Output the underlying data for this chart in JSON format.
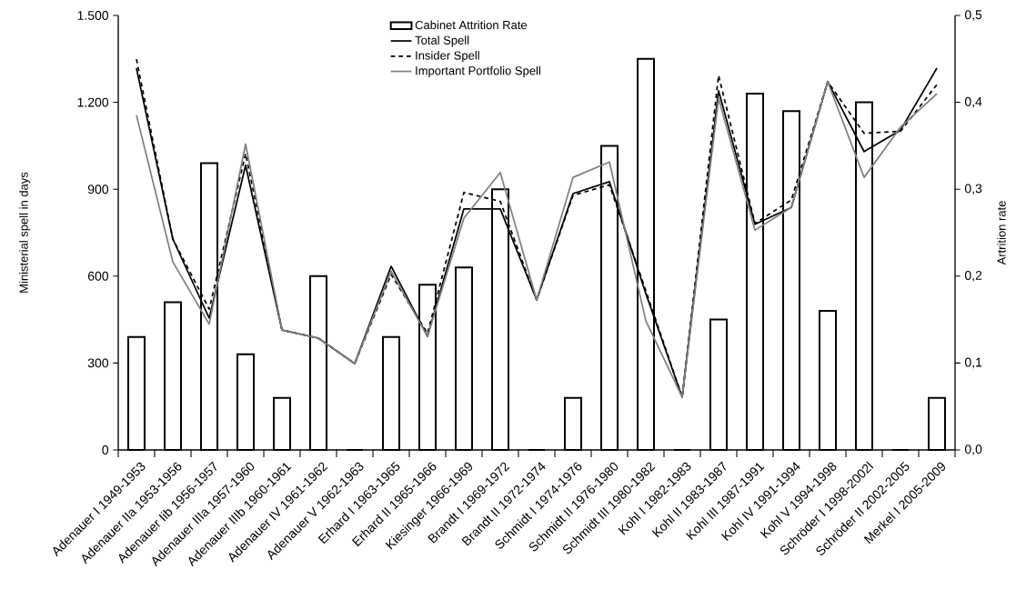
{
  "chart_data": {
    "type": "bar",
    "categories": [
      "Adenauer I 1949-1953",
      "Adenauer IIa 1953-1956",
      "Adenauer Iib 1956-1957",
      "Adenauer IIIa 1957-1960",
      "Adenauer IIIb 1960-1961",
      "Adenauer IV 1961-1962",
      "Adenauer V 1962-1963",
      "Erhard I 1963-1965",
      "Erhard II 1965-1966",
      "Kiesinger 1966-1969",
      "Brandt I 1969-1972",
      "Brandt II 1972-1974",
      "Schmidt I 1974-1976",
      "Schmidt II 1976-1980",
      "Schmidt III 1980-1982",
      "Kohl I 1982-1983",
      "Kohl II 1983-1987",
      "Kohl III 1987-1991",
      "Kohl IV 1991-1994",
      "Kohl V 1994-1998",
      "Schröder I 1998-2002l",
      "Schröder II 2002-2005",
      "Merkel I 2005-2009"
    ],
    "series": [
      {
        "name": "Cabinet Attrition  Rate",
        "axis": "y2",
        "color": "#000000",
        "values": [
          0.13,
          0.17,
          0.33,
          0.11,
          0.06,
          0.2,
          0,
          0.13,
          0.19,
          0.21,
          0.3,
          0,
          0.06,
          0.35,
          0.45,
          0,
          0.15,
          0.41,
          0.39,
          0.16,
          0.4,
          0,
          0.06
        ]
      },
      {
        "name": "Total Spell",
        "type": "line",
        "color": "#000000",
        "line_style": "solid",
        "values": [
          1318,
          728,
          455,
          983,
          414,
          386,
          298,
          634,
          392,
          832,
          832,
          518,
          885,
          926,
          540,
          182,
          1240,
          779,
          837,
          1271,
          1030,
          1104,
          1318
        ]
      },
      {
        "name": "Insider Spell",
        "type": "line",
        "color": "#000000",
        "line_style": "dashed",
        "values": [
          1349,
          728,
          486,
          1023,
          414,
          386,
          298,
          606,
          402,
          889,
          858,
          518,
          879,
          915,
          550,
          182,
          1293,
          782,
          863,
          1271,
          1093,
          1100,
          1261
        ]
      },
      {
        "name": "Important Portfolio Spell",
        "type": "line",
        "color": "#808080",
        "line_style": "solid",
        "values": [
          1156,
          649,
          434,
          1056,
          414,
          386,
          298,
          617,
          392,
          800,
          958,
          518,
          941,
          994,
          446,
          182,
          1214,
          759,
          837,
          1271,
          941,
          1114,
          1230
        ]
      }
    ],
    "ylabel": "Ministerial spell in days",
    "y2label": "Artrition rate",
    "ylim": [
      0,
      1500
    ],
    "yticks": [
      0,
      300,
      600,
      900,
      {
        "value": 1200,
        "label": "1.200"
      },
      {
        "value": 1500,
        "label": "1.500"
      }
    ],
    "y2lim": [
      0,
      0.5
    ],
    "y2ticks": [
      {
        "value": 0,
        "label": "0,0"
      },
      {
        "value": 0.1,
        "label": "0,1"
      },
      {
        "value": 0.2,
        "label": "0,2"
      },
      {
        "value": 0.3,
        "label": "0,3"
      },
      {
        "value": 0.4,
        "label": "0,4"
      },
      {
        "value": 0.5,
        "label": "0,5"
      }
    ],
    "legend": "top",
    "grid": false
  }
}
